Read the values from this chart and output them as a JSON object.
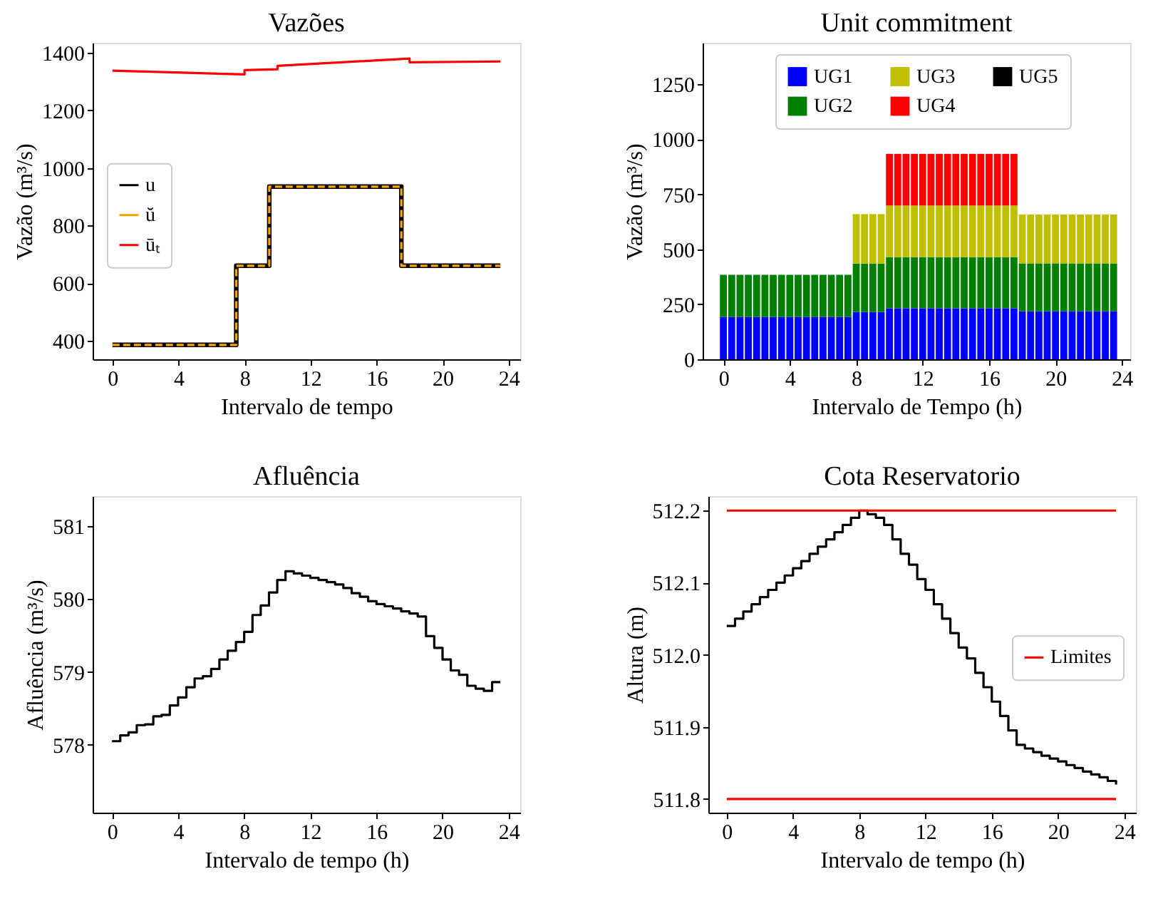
{
  "chart_data": [
    {
      "type": "step",
      "title": "Vazões",
      "xlabel": "Intervalo de tempo",
      "ylabel": "Vazão (m³/s)",
      "xlim": [
        -1.2,
        24.7
      ],
      "ylim": [
        335,
        1435
      ],
      "xticks": [
        0,
        4,
        8,
        12,
        16,
        20,
        24
      ],
      "yticks": [
        400,
        600,
        800,
        1000,
        1200,
        1400
      ],
      "legend": "left",
      "grid": false,
      "series": [
        {
          "name": "u",
          "color": "#000000",
          "x": [
            0,
            7.5,
            9.5,
            17.5,
            23.5
          ],
          "values": [
            385,
            660,
            935,
            660,
            660
          ]
        },
        {
          "name": "ŭ",
          "color": "#ffa500",
          "line_style": "dashed",
          "x": [
            0,
            7.5,
            9.5,
            17.5,
            23.5
          ],
          "values": [
            385,
            660,
            935,
            660,
            660
          ]
        },
        {
          "name": "ūₜ",
          "type": "line",
          "color": "#ff0000",
          "x": [
            0,
            8,
            8,
            10,
            10,
            18,
            18,
            23.5
          ],
          "values": [
            1338,
            1325,
            1340,
            1343,
            1355,
            1380,
            1367,
            1370
          ]
        }
      ]
    },
    {
      "type": "bar",
      "stacked": true,
      "title": "Unit commitment",
      "xlabel": "Intervalo de Tempo (h)",
      "ylabel": "Vazão (m³/s)",
      "xlim": [
        -1.25,
        24.5
      ],
      "ylim": [
        0,
        1439
      ],
      "xticks": [
        0,
        4,
        8,
        12,
        16,
        20,
        24
      ],
      "yticks": [
        0,
        250,
        500,
        750,
        1000,
        1250
      ],
      "legend": "top",
      "grid": false,
      "x": [
        0,
        0.5,
        1,
        1.5,
        2,
        2.5,
        3,
        3.5,
        4,
        4.5,
        5,
        5.5,
        6,
        6.5,
        7,
        7.5,
        8,
        8.5,
        9,
        9.5,
        10,
        10.5,
        11,
        11.5,
        12,
        12.5,
        13,
        13.5,
        14,
        14.5,
        15,
        15.5,
        16,
        16.5,
        17,
        17.5,
        18,
        18.5,
        19,
        19.5,
        20,
        20.5,
        21,
        21.5,
        22,
        22.5,
        23,
        23.5
      ],
      "series": [
        {
          "name": "UG1",
          "color": "#0000ff",
          "values": [
            192,
            192,
            192,
            192,
            192,
            192,
            192,
            192,
            192,
            192,
            192,
            192,
            192,
            192,
            192,
            192,
            215,
            215,
            215,
            215,
            232,
            232,
            232,
            232,
            232,
            232,
            232,
            232,
            232,
            232,
            232,
            232,
            232,
            232,
            232,
            232,
            218,
            218,
            218,
            218,
            218,
            218,
            218,
            218,
            218,
            218,
            218,
            218
          ]
        },
        {
          "name": "UG2",
          "color": "#008000",
          "values": [
            192,
            192,
            192,
            192,
            192,
            192,
            192,
            192,
            192,
            192,
            192,
            192,
            192,
            192,
            192,
            192,
            220,
            220,
            220,
            220,
            232,
            232,
            232,
            232,
            232,
            232,
            232,
            232,
            232,
            232,
            232,
            232,
            232,
            232,
            232,
            232,
            218,
            218,
            218,
            218,
            218,
            218,
            218,
            218,
            218,
            218,
            218,
            218
          ]
        },
        {
          "name": "UG3",
          "color": "#bfbf00",
          "values": [
            0,
            0,
            0,
            0,
            0,
            0,
            0,
            0,
            0,
            0,
            0,
            0,
            0,
            0,
            0,
            0,
            225,
            225,
            225,
            225,
            235,
            235,
            235,
            235,
            235,
            235,
            235,
            235,
            235,
            235,
            235,
            235,
            235,
            235,
            235,
            235,
            222,
            222,
            222,
            222,
            222,
            222,
            222,
            222,
            222,
            222,
            222,
            222
          ]
        },
        {
          "name": "UG4",
          "color": "#ff0000",
          "values": [
            0,
            0,
            0,
            0,
            0,
            0,
            0,
            0,
            0,
            0,
            0,
            0,
            0,
            0,
            0,
            0,
            0,
            0,
            0,
            0,
            235,
            235,
            235,
            235,
            235,
            235,
            235,
            235,
            235,
            235,
            235,
            235,
            235,
            235,
            235,
            235,
            0,
            0,
            0,
            0,
            0,
            0,
            0,
            0,
            0,
            0,
            0,
            0
          ]
        },
        {
          "name": "UG5",
          "color": "#000000",
          "values": [
            0,
            0,
            0,
            0,
            0,
            0,
            0,
            0,
            0,
            0,
            0,
            0,
            0,
            0,
            0,
            0,
            0,
            0,
            0,
            0,
            0,
            0,
            0,
            0,
            0,
            0,
            0,
            0,
            0,
            0,
            0,
            0,
            0,
            0,
            0,
            0,
            0,
            0,
            0,
            0,
            0,
            0,
            0,
            0,
            0,
            0,
            0,
            0
          ]
        }
      ]
    },
    {
      "type": "step",
      "title": "Afluência",
      "xlabel": "Intervalo de tempo (h)",
      "ylabel": "Afluência (m³/s)",
      "xlim": [
        -1.17,
        24.7
      ],
      "ylim": [
        577.07,
        581.41
      ],
      "xticks": [
        0,
        4,
        8,
        12,
        16,
        20,
        24
      ],
      "yticks": [
        578,
        579,
        580,
        581
      ],
      "grid": false,
      "x": [
        0,
        0.5,
        1,
        1.5,
        2,
        2.5,
        3,
        3.5,
        4,
        4.5,
        5,
        5.5,
        6,
        6.5,
        7,
        7.5,
        8,
        8.5,
        9,
        9.5,
        10,
        10.5,
        11,
        11.5,
        12,
        12.5,
        13,
        13.5,
        14,
        14.5,
        15,
        15.5,
        16,
        16.5,
        17,
        17.5,
        18,
        18.5,
        19,
        19.5,
        20,
        20.5,
        21,
        21.5,
        22,
        22.5,
        23,
        23.5
      ],
      "series": [
        {
          "color": "#000000",
          "values": [
            578.05,
            578.13,
            578.17,
            578.27,
            578.28,
            578.39,
            578.41,
            578.54,
            578.65,
            578.79,
            578.91,
            578.94,
            579.04,
            579.17,
            579.29,
            579.41,
            579.55,
            579.78,
            579.91,
            580.09,
            580.26,
            580.38,
            580.35,
            580.32,
            580.29,
            580.26,
            580.23,
            580.2,
            580.15,
            580.08,
            580.03,
            579.97,
            579.93,
            579.9,
            579.87,
            579.83,
            579.8,
            579.76,
            579.49,
            579.33,
            579.17,
            579.02,
            578.96,
            578.81,
            578.77,
            578.74,
            578.86,
            578.86
          ]
        }
      ]
    },
    {
      "type": "step",
      "title": "Cota Reservatorio",
      "xlabel": "Intervalo de tempo (h)",
      "ylabel": "Altura (m)",
      "xlim": [
        -1.11,
        24.7
      ],
      "ylim": [
        511.781,
        512.22
      ],
      "xticks": [
        0,
        4,
        8,
        12,
        16,
        20,
        24
      ],
      "yticks": [
        511.8,
        511.9,
        {
          "value": 512,
          "label": "512.0"
        },
        512.1,
        512.2
      ],
      "legend": "right",
      "grid": false,
      "x": [
        0,
        0.5,
        1,
        1.5,
        2,
        2.5,
        3,
        3.5,
        4,
        4.5,
        5,
        5.5,
        6,
        6.5,
        7,
        7.5,
        8,
        8.5,
        9,
        9.5,
        10,
        10.5,
        11,
        11.5,
        12,
        12.5,
        13,
        13.5,
        14,
        14.5,
        15,
        15.5,
        16,
        16.5,
        17,
        17.5,
        18,
        18.5,
        19,
        19.5,
        20,
        20.5,
        21,
        21.5,
        22,
        22.5,
        23,
        23.5
      ],
      "series": [
        {
          "color": "#000000",
          "values": [
            512.04,
            512.05,
            512.06,
            512.07,
            512.08,
            512.09,
            512.1,
            512.11,
            512.12,
            512.13,
            512.14,
            512.15,
            512.16,
            512.17,
            512.18,
            512.19,
            512.2,
            512.195,
            512.19,
            512.18,
            512.16,
            512.14,
            512.125,
            512.105,
            512.09,
            512.07,
            512.05,
            512.03,
            512.01,
            511.995,
            511.975,
            511.955,
            511.935,
            511.915,
            511.895,
            511.875,
            511.87,
            511.865,
            511.86,
            511.856,
            511.852,
            511.847,
            511.843,
            511.838,
            511.834,
            511.83,
            511.825,
            511.82
          ]
        }
      ],
      "ref_lines": [
        {
          "axis": "y",
          "value": 512.2,
          "label": "Limites",
          "color": "#ff0000"
        },
        {
          "axis": "y",
          "value": 511.8,
          "color": "#ff0000"
        }
      ]
    }
  ]
}
